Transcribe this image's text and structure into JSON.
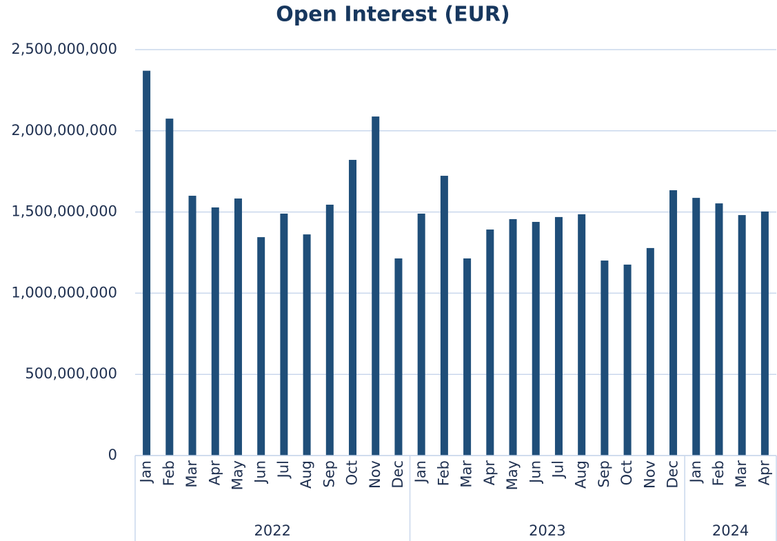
{
  "chart_data": {
    "type": "bar",
    "title": "Open Interest (EUR)",
    "groups": [
      {
        "label": "2022",
        "categories": [
          "Jan",
          "Feb",
          "Mar",
          "Apr",
          "May",
          "Jun",
          "Jul",
          "Aug",
          "Sep",
          "Oct",
          "Nov",
          "Dec"
        ]
      },
      {
        "label": "2023",
        "categories": [
          "Jan",
          "Feb",
          "Mar",
          "Apr",
          "May",
          "Jun",
          "Jul",
          "Aug",
          "Sep",
          "Oct",
          "Nov",
          "Dec"
        ]
      },
      {
        "label": "2024",
        "categories": [
          "Jan",
          "Feb",
          "Mar",
          "Apr"
        ]
      }
    ],
    "values": [
      2370000000,
      2075000000,
      1600000000,
      1528000000,
      1583000000,
      1345000000,
      1490000000,
      1362000000,
      1545000000,
      1821000000,
      2088000000,
      1214000000,
      1490000000,
      1723000000,
      1214000000,
      1392000000,
      1456000000,
      1439000000,
      1469000000,
      1486000000,
      1201000000,
      1176000000,
      1278000000,
      1634000000,
      1587000000,
      1553000000,
      1481000000,
      1503000000
    ],
    "color": "#1f4e79",
    "ylim": [
      0,
      2500000000
    ],
    "yticks": [
      0,
      {
        "value": 500000000,
        "label": "500,000,000"
      },
      {
        "value": 1000000000,
        "label": "1,000,000,000"
      },
      {
        "value": 1500000000,
        "label": "1,500,000,000"
      },
      {
        "value": 2000000000,
        "label": "2,000,000,000"
      },
      {
        "value": 2500000000,
        "label": "2,500,000,000"
      }
    ],
    "grid": true
  }
}
